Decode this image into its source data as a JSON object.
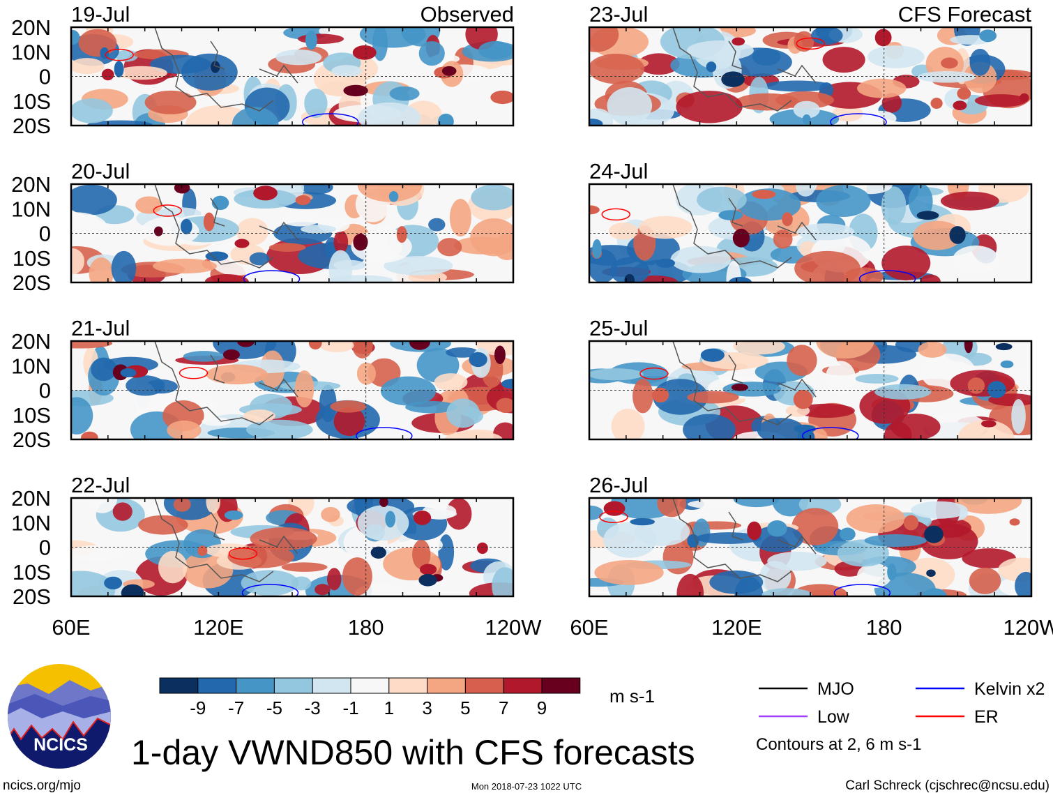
{
  "observed_label": "Observed",
  "forecast_label": "CFS Forecast",
  "panels": [
    {
      "date": "19-Jul",
      "column": "observed"
    },
    {
      "date": "20-Jul",
      "column": "observed"
    },
    {
      "date": "21-Jul",
      "column": "observed"
    },
    {
      "date": "22-Jul",
      "column": "observed"
    },
    {
      "date": "23-Jul",
      "column": "forecast"
    },
    {
      "date": "24-Jul",
      "column": "forecast"
    },
    {
      "date": "25-Jul",
      "column": "forecast"
    },
    {
      "date": "26-Jul",
      "column": "forecast"
    }
  ],
  "lat_labels": [
    "20N",
    "10N",
    "0",
    "10S",
    "20S"
  ],
  "lon_labels": [
    "60E",
    "120E",
    "180",
    "120W"
  ],
  "colorbar": {
    "colors": [
      "#0b2f5f",
      "#2268ad",
      "#4595c6",
      "#93c6df",
      "#d2e6f1",
      "#f7f7f7",
      "#fddbc7",
      "#f4a582",
      "#d6604d",
      "#b2182b",
      "#67001f"
    ],
    "labels": [
      "-9",
      "-7",
      "-5",
      "-3",
      "-1",
      "1",
      "3",
      "5",
      "7",
      "9"
    ],
    "units": "m s-1"
  },
  "legend": {
    "items": [
      {
        "label": "MJO",
        "color": "#000000"
      },
      {
        "label": "Kelvin x2",
        "color": "#0000ff"
      },
      {
        "label": "Low",
        "color": "#a040ff"
      },
      {
        "label": "ER",
        "color": "#ff0000"
      }
    ],
    "contours": "Contours at 2, 6 m s-1"
  },
  "title": "1-day VWND850 with CFS forecasts",
  "logo_text": "NCICS",
  "footer": {
    "url": "ncics.org/mjo",
    "timestamp": "Mon 2018-07-23 1022 UTC",
    "author": "Carl Schreck (cjschrec@ncsu.edu)"
  }
}
